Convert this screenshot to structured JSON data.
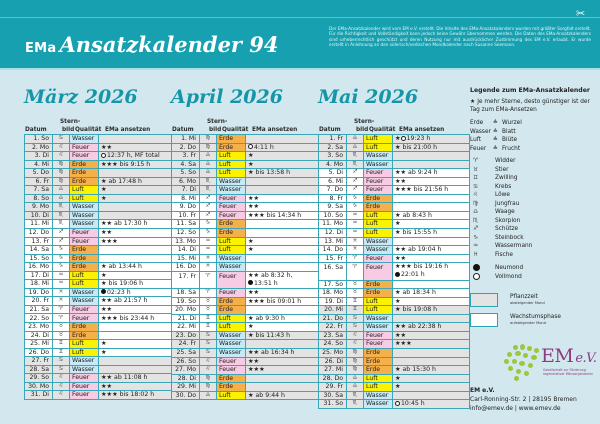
{
  "header": {
    "brand": "EMa",
    "title": "Ansatzkalender 94",
    "disclaimer": "Der EMa-Ansatzkalender wird vom EM e.V. erstellt. Die Inhalte des EMa-Ansatzkalenders wurden mit größter Sorgfalt erstellt. Für die Richtigkeit und Vollständigkeit kann jedoch keine Gewähr übernommen werden. Die Daten des EMa-Ansatzkalenders sind urheberrechtlich geschützt und deren Nutzung nur mit ausdrücklicher Zustimmung des EM e.V. erlaubt. Er wurde erstellt in Anlehnung an den siderisch/vedischen Mondkalender nach Susanne Seemann.",
    "scissors_icon": "✂"
  },
  "columns": {
    "datum": "Datum",
    "sternbild_1": "Stern-",
    "sternbild_2": "bild",
    "qualitaet": "Qualität",
    "ansetzen": "EMa ansetzen"
  },
  "colors": {
    "header_bg": "#16a0b0",
    "page_bg": "#d3e8ee",
    "title_color": "#1596a8",
    "Wasser": "#c7e9f5",
    "Feuer": "#f7cbe3",
    "Erde": "#f6b04a",
    "Luft": "#fbf200",
    "pflanzzeit": "#e3e3e3",
    "wachstum": "#ffffff"
  },
  "months": [
    {
      "title": "März 2026",
      "rows": [
        {
          "d": "1. So",
          "s": "♋",
          "q": "Wasser",
          "e": "",
          "gray": true
        },
        {
          "d": "2. Mo",
          "s": "♌",
          "q": "Feuer",
          "e": "★★",
          "gray": true
        },
        {
          "d": "3. Di",
          "s": "♌",
          "q": "Feuer",
          "e": "12:37 h, MF total",
          "moon": "full",
          "gray": true
        },
        {
          "d": "4. Mi",
          "s": "♍",
          "q": "Erde",
          "e": "★★★ bis 9:15 h",
          "gray": true
        },
        {
          "d": "5. Do",
          "s": "♍",
          "q": "Erde",
          "e": "",
          "gray": true
        },
        {
          "d": "6. Fr",
          "s": "♍",
          "q": "Erde",
          "e": "★ ab 17:48 h",
          "gray": true
        },
        {
          "d": "7. Sa",
          "s": "♎",
          "q": "Luft",
          "e": "★",
          "gray": true
        },
        {
          "d": "8. So",
          "s": "♎",
          "q": "Luft",
          "e": "★",
          "gray": true
        },
        {
          "d": "9. Mo",
          "s": "♏",
          "q": "Wasser",
          "e": "",
          "gray": true
        },
        {
          "d": "10. Di",
          "s": "♏",
          "q": "Wasser",
          "e": "",
          "gray": true
        },
        {
          "d": "11. Mi",
          "s": "♏",
          "q": "Wasser",
          "e": "★★ ab 17:30 h",
          "gray": false
        },
        {
          "d": "12. Do",
          "s": "♐",
          "q": "Feuer",
          "e": "★★",
          "gray": false
        },
        {
          "d": "13. Fr",
          "s": "♐",
          "q": "Feuer",
          "e": "★★★",
          "gray": false
        },
        {
          "d": "14. Sa",
          "s": "♑",
          "q": "Erde",
          "e": "",
          "gray": false
        },
        {
          "d": "15. So",
          "s": "♑",
          "q": "Erde",
          "e": "",
          "gray": false
        },
        {
          "d": "16. Mo",
          "s": "♑",
          "q": "Erde",
          "e": "★ ab 13:44 h",
          "gray": false
        },
        {
          "d": "17. Di",
          "s": "♒",
          "q": "Luft",
          "e": "★",
          "gray": false
        },
        {
          "d": "18. Mi",
          "s": "♒",
          "q": "Luft",
          "e": "★ bis 19:06 h",
          "gray": false
        },
        {
          "d": "19. Do",
          "s": "♓",
          "q": "Wasser",
          "e": "02:23 h",
          "moon": "new",
          "gray": false
        },
        {
          "d": "20. Fr",
          "s": "♓",
          "q": "Wasser",
          "e": "★★ ab 21:57 h",
          "gray": false
        },
        {
          "d": "21. Sa",
          "s": "♈",
          "q": "Feuer",
          "e": "★★",
          "gray": false
        },
        {
          "d": "22. So",
          "s": "♈",
          "q": "Feuer",
          "e": "★★★ bis 23:44 h",
          "gray": false
        },
        {
          "d": "23. Mo",
          "s": "♉",
          "q": "Erde",
          "e": "",
          "gray": false
        },
        {
          "d": "24. Di",
          "s": "♉",
          "q": "Erde",
          "e": "",
          "gray": false
        },
        {
          "d": "25. Mi",
          "s": "♊",
          "q": "Luft",
          "e": "★",
          "gray": false
        },
        {
          "d": "26. Do",
          "s": "♊",
          "q": "Luft",
          "e": "★",
          "gray": false
        },
        {
          "d": "27. Fr",
          "s": "♋",
          "q": "Wasser",
          "e": "",
          "gray": true
        },
        {
          "d": "28. Sa",
          "s": "♋",
          "q": "Wasser",
          "e": "",
          "gray": true
        },
        {
          "d": "29. So",
          "s": "♌",
          "q": "Feuer",
          "e": "★★ ab 11:08 h",
          "gray": true
        },
        {
          "d": "30. Mo",
          "s": "♌",
          "q": "Feuer",
          "e": "★★",
          "gray": true
        },
        {
          "d": "31. Di",
          "s": "♌",
          "q": "Feuer",
          "e": "★★★ bis 18:02 h",
          "gray": true
        }
      ]
    },
    {
      "title": "April 2026",
      "rows": [
        {
          "d": "1. Mi",
          "s": "♍",
          "q": "Erde",
          "e": "",
          "gray": true
        },
        {
          "d": "2. Do",
          "s": "♍",
          "q": "Erde",
          "e": "4:11 h",
          "moon": "full",
          "gray": true
        },
        {
          "d": "3. Fr",
          "s": "♎",
          "q": "Luft",
          "e": "★",
          "gray": true
        },
        {
          "d": "4. Sa",
          "s": "♎",
          "q": "Luft",
          "e": "★",
          "gray": true
        },
        {
          "d": "5. So",
          "s": "♎",
          "q": "Luft",
          "e": "★ bis 13:58 h",
          "gray": true
        },
        {
          "d": "6. Mo",
          "s": "♏",
          "q": "Wasser",
          "e": "",
          "gray": true
        },
        {
          "d": "7. Di",
          "s": "♏",
          "q": "Wasser",
          "e": "",
          "gray": true
        },
        {
          "d": "8. Mi",
          "s": "♐",
          "q": "Feuer",
          "e": "★★",
          "gray": false
        },
        {
          "d": "9. Do",
          "s": "♐",
          "q": "Feuer",
          "e": "★★",
          "gray": false
        },
        {
          "d": "10. Fr",
          "s": "♐",
          "q": "Feuer",
          "e": "★★★ bis 14:34 h",
          "gray": false
        },
        {
          "d": "11. Sa",
          "s": "♑",
          "q": "Erde",
          "e": "",
          "gray": false
        },
        {
          "d": "12. So",
          "s": "♑",
          "q": "Erde",
          "e": "",
          "gray": false
        },
        {
          "d": "13. Mo",
          "s": "♒",
          "q": "Luft",
          "e": "★",
          "gray": false
        },
        {
          "d": "14. Di",
          "s": "♒",
          "q": "Luft",
          "e": "★",
          "gray": false
        },
        {
          "d": "15. Mi",
          "s": "♓",
          "q": "Wasser",
          "e": "",
          "gray": false
        },
        {
          "d": "16. Do",
          "s": "♓",
          "q": "Wasser",
          "e": "",
          "gray": false
        },
        {
          "d": "17. Fr",
          "s": "♈",
          "q": "Feuer",
          "e": "★★ ab 8:32 h,",
          "e2": "13:51 h",
          "moon2": "new",
          "gray": false
        },
        {
          "d": "18. Sa",
          "s": "♈",
          "q": "Feuer",
          "e": "★★",
          "gray": false
        },
        {
          "d": "19. So",
          "s": "♉",
          "q": "Erde",
          "e": "★★★ bis 09:01 h",
          "gray": false
        },
        {
          "d": "20. Mo",
          "s": "♉",
          "q": "Erde",
          "e": "",
          "gray": false
        },
        {
          "d": "21. Di",
          "s": "♊",
          "q": "Luft",
          "e": "★ ab 9:30 h",
          "gray": false
        },
        {
          "d": "22. Mi",
          "s": "♊",
          "q": "Luft",
          "e": "★",
          "gray": false
        },
        {
          "d": "23. Do",
          "s": "♋",
          "q": "Wasser",
          "e": "★ bis 11:43 h",
          "gray": true
        },
        {
          "d": "24. Fr",
          "s": "♋",
          "q": "Wasser",
          "e": "",
          "gray": true
        },
        {
          "d": "25. Sa",
          "s": "♋",
          "q": "Wasser",
          "e": "★★ ab 16:34 h",
          "gray": true
        },
        {
          "d": "26. So",
          "s": "♌",
          "q": "Feuer",
          "e": "★★",
          "gray": true
        },
        {
          "d": "27. Mo",
          "s": "♌",
          "q": "Feuer",
          "e": "★★★",
          "gray": true
        },
        {
          "d": "28. Di",
          "s": "♍",
          "q": "Erde",
          "e": "",
          "gray": true
        },
        {
          "d": "29. Mi",
          "s": "♍",
          "q": "Erde",
          "e": "",
          "gray": true
        },
        {
          "d": "30. Do",
          "s": "♎",
          "q": "Luft",
          "e": "★ ab 9:44 h",
          "gray": true
        }
      ]
    },
    {
      "title": "Mai 2026",
      "rows": [
        {
          "d": "1. Fr",
          "s": "♎",
          "q": "Luft",
          "e": "★ 19:23 h",
          "moon": "full",
          "moonAfterStar": true,
          "gray": true
        },
        {
          "d": "2. Sa",
          "s": "♎",
          "q": "Luft",
          "e": "★ bis 21:00 h",
          "gray": true
        },
        {
          "d": "3. So",
          "s": "♏",
          "q": "Wasser",
          "e": "",
          "gray": true
        },
        {
          "d": "4. Mo",
          "s": "♏",
          "q": "Wasser",
          "e": "",
          "gray": true
        },
        {
          "d": "5. Di",
          "s": "♐",
          "q": "Feuer",
          "e": "★★ ab 9:24 h",
          "gray": false
        },
        {
          "d": "6. Mi",
          "s": "♐",
          "q": "Feuer",
          "e": "★★",
          "gray": false
        },
        {
          "d": "7. Do",
          "s": "♐",
          "q": "Feuer",
          "e": "★★★ bis 21:56 h",
          "gray": false
        },
        {
          "d": "8. Fr",
          "s": "♑",
          "q": "Erde",
          "e": "",
          "gray": false
        },
        {
          "d": "9. Sa",
          "s": "♑",
          "q": "Erde",
          "e": "",
          "gray": false
        },
        {
          "d": "10. So",
          "s": "♒",
          "q": "Luft",
          "e": "★ ab 8:43 h",
          "gray": false
        },
        {
          "d": "11. Mo",
          "s": "♒",
          "q": "Luft",
          "e": "★",
          "gray": false
        },
        {
          "d": "12. Di",
          "s": "♒",
          "q": "Luft",
          "e": "★ bis 15:55 h",
          "gray": false
        },
        {
          "d": "13. Mi",
          "s": "♓",
          "q": "Wasser",
          "e": "",
          "gray": false
        },
        {
          "d": "14. Do",
          "s": "♓",
          "q": "Wasser",
          "e": "★★ ab 19:04 h",
          "gray": false
        },
        {
          "d": "15. Fr",
          "s": "♈",
          "q": "Feuer",
          "e": "★★",
          "gray": false
        },
        {
          "d": "16. Sa",
          "s": "♈",
          "q": "Feuer",
          "e": "★★★ bis 19:16 h",
          "e2": "22:01 h",
          "moon2": "new",
          "gray": false
        },
        {
          "d": "17. So",
          "s": "♉",
          "q": "Erde",
          "e": "",
          "gray": false
        },
        {
          "d": "18. Mo",
          "s": "♉",
          "q": "Erde",
          "e": "★ ab 18:34 h",
          "gray": false
        },
        {
          "d": "19. Di",
          "s": "♊",
          "q": "Luft",
          "e": "★",
          "gray": false
        },
        {
          "d": "20. Mi",
          "s": "♊",
          "q": "Luft",
          "e": "★ bis 19:08 h",
          "gray": true
        },
        {
          "d": "21. Do",
          "s": "♋",
          "q": "Wasser",
          "e": "",
          "gray": true
        },
        {
          "d": "22. Fr",
          "s": "♋",
          "q": "Wasser",
          "e": "★★ ab 22:38 h",
          "gray": true
        },
        {
          "d": "23. Sa",
          "s": "♌",
          "q": "Feuer",
          "e": "★★",
          "gray": true
        },
        {
          "d": "24. So",
          "s": "♌",
          "q": "Feuer",
          "e": "★★★",
          "gray": true
        },
        {
          "d": "25. Mo",
          "s": "♍",
          "q": "Erde",
          "e": "",
          "gray": true
        },
        {
          "d": "26. Di",
          "s": "♍",
          "q": "Erde",
          "e": "",
          "gray": true
        },
        {
          "d": "27. Mi",
          "s": "♍",
          "q": "Erde",
          "e": "★ ab 15:30 h",
          "gray": true
        },
        {
          "d": "28. Do",
          "s": "♎",
          "q": "Luft",
          "e": "★",
          "gray": true
        },
        {
          "d": "29. Fr",
          "s": "♎",
          "q": "Luft",
          "e": "★",
          "gray": true
        },
        {
          "d": "30. Sa",
          "s": "♏",
          "q": "Wasser",
          "e": "",
          "gray": true
        },
        {
          "d": "31. So",
          "s": "♏",
          "q": "Wasser",
          "e": "10:45 h",
          "moon": "full",
          "gray": true
        }
      ]
    }
  ],
  "legend": {
    "title": "Legende zum EMa-Ansatzkalender",
    "note_star": "★",
    "note": "Je mehr Sterne, desto günstiger ist der Tag zum EMa-Ansetzen",
    "elements": [
      {
        "element": "Erde",
        "eq": "≙",
        "part": "Wurzel"
      },
      {
        "element": "Wasser",
        "eq": "≙",
        "part": "Blatt"
      },
      {
        "element": "Luft",
        "eq": "≙",
        "part": "Blüte"
      },
      {
        "element": "Feuer",
        "eq": "≙",
        "part": "Frucht"
      }
    ],
    "signs": [
      {
        "symbol": "♈",
        "name": "Widder"
      },
      {
        "symbol": "♉",
        "name": "Stier"
      },
      {
        "symbol": "♊",
        "name": "Zwilling"
      },
      {
        "symbol": "♋",
        "name": "Krebs"
      },
      {
        "symbol": "♌",
        "name": "Löwe"
      },
      {
        "symbol": "♍",
        "name": "Jungfrau"
      },
      {
        "symbol": "♎",
        "name": "Waage"
      },
      {
        "symbol": "♏",
        "name": "Skorpion"
      },
      {
        "symbol": "♐",
        "name": "Schütze"
      },
      {
        "symbol": "♑",
        "name": "Steinbock"
      },
      {
        "symbol": "♒",
        "name": "Wassermann"
      },
      {
        "symbol": "♓",
        "name": "Fische"
      }
    ],
    "moons": [
      {
        "type": "new",
        "name": "Neumond"
      },
      {
        "type": "full",
        "name": "Vollmond"
      }
    ],
    "phases": [
      {
        "box": "gray",
        "label": "Pflanzzeit",
        "sub": "absteigender Mond"
      },
      {
        "box": "white",
        "label": "Wachstumsphase",
        "sub": "aufsteigender Mond"
      }
    ]
  },
  "logo": {
    "name": "EM",
    "suffix": "e.V.",
    "tagline_1": "Gesellschaft zur Förderung",
    "tagline_2": "regenerativer Mikroorganismen"
  },
  "contact": {
    "org": "EM e.V.",
    "address": "Carl-Ronning-Str. 2 | 28195 Bremen",
    "web": "info@emev.de | www.emev.de"
  }
}
